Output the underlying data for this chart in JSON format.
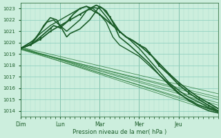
{
  "xlabel": "Pression niveau de la mer( hPa )",
  "ylim": [
    1013.5,
    1023.5
  ],
  "yticks": [
    1014,
    1015,
    1016,
    1017,
    1018,
    1019,
    1020,
    1021,
    1022,
    1023
  ],
  "days": [
    "Dim",
    "Lun",
    "Mar",
    "Mer",
    "Jeu"
  ],
  "day_positions": [
    0,
    24,
    48,
    72,
    96
  ],
  "total_hours": 120,
  "bg_color": "#cceedd",
  "grid_color_minor": "#aaddcc",
  "grid_color_major": "#88ccbb",
  "line_color_dark": "#1a5c28",
  "line_color_thin": "#2a7a3a",
  "fig_bg": "#cceedd"
}
